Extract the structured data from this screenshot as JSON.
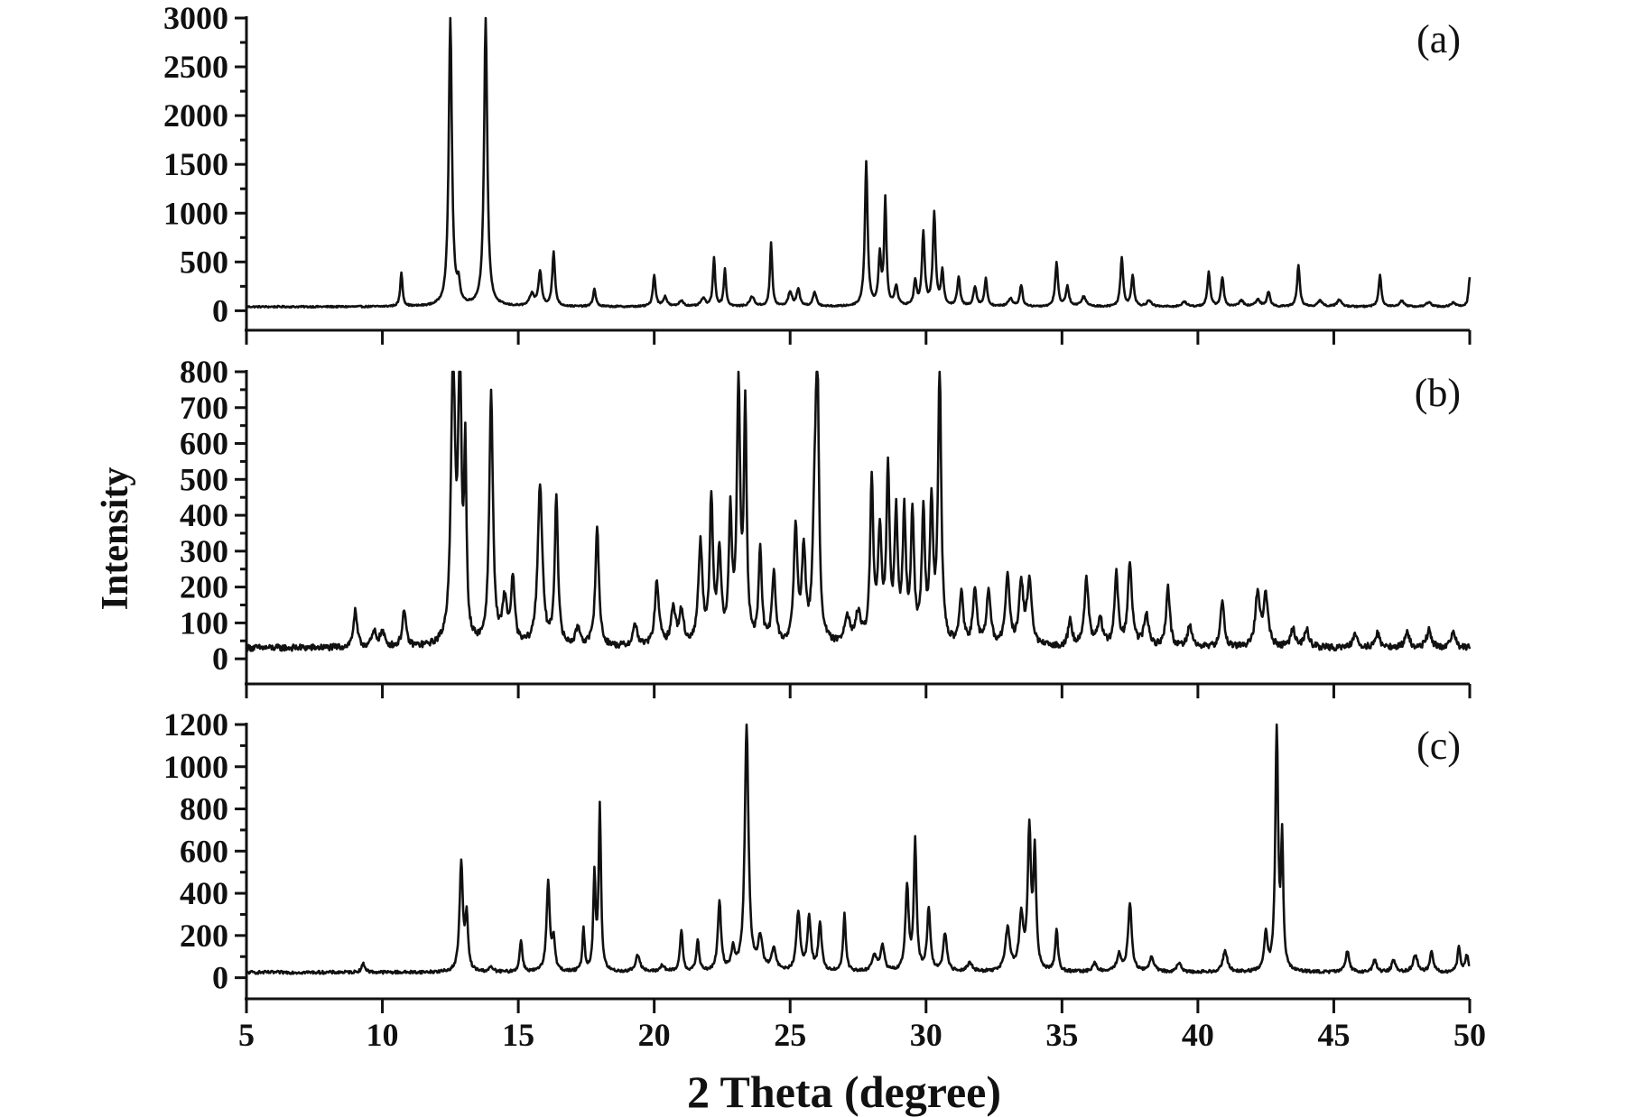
{
  "chart_data": {
    "type": "line",
    "xlabel": "2 Theta (degree)",
    "ylabel": "Intensity",
    "xlim": [
      5,
      50
    ],
    "x_ticks": [
      5,
      10,
      15,
      20,
      25,
      30,
      35,
      40,
      45,
      50
    ],
    "grid": false,
    "line_color": "#111111",
    "panels": [
      {
        "label": "(a)",
        "ylim": [
          -200,
          3000
        ],
        "y_ticks": [
          0,
          500,
          1000,
          1500,
          2000,
          2500,
          3000
        ],
        "baseline": 40,
        "peaks": [
          [
            10.7,
            350,
            0.05
          ],
          [
            12.5,
            2950,
            0.07
          ],
          [
            12.8,
            200,
            0.06
          ],
          [
            13.8,
            2950,
            0.07
          ],
          [
            15.5,
            120,
            0.1
          ],
          [
            15.8,
            350,
            0.07
          ],
          [
            16.3,
            550,
            0.06
          ],
          [
            17.8,
            180,
            0.06
          ],
          [
            20.0,
            320,
            0.06
          ],
          [
            20.4,
            100,
            0.08
          ],
          [
            21.0,
            60,
            0.1
          ],
          [
            21.8,
            80,
            0.1
          ],
          [
            22.2,
            500,
            0.05
          ],
          [
            22.6,
            380,
            0.05
          ],
          [
            23.6,
            100,
            0.1
          ],
          [
            24.3,
            650,
            0.05
          ],
          [
            25.0,
            150,
            0.08
          ],
          [
            25.3,
            180,
            0.07
          ],
          [
            25.9,
            140,
            0.08
          ],
          [
            27.8,
            1480,
            0.06
          ],
          [
            28.3,
            500,
            0.06
          ],
          [
            28.5,
            1080,
            0.05
          ],
          [
            28.9,
            200,
            0.07
          ],
          [
            29.6,
            250,
            0.06
          ],
          [
            29.9,
            750,
            0.06
          ],
          [
            30.3,
            950,
            0.06
          ],
          [
            30.6,
            350,
            0.06
          ],
          [
            31.2,
            300,
            0.06
          ],
          [
            31.8,
            200,
            0.07
          ],
          [
            32.2,
            280,
            0.06
          ],
          [
            33.1,
            80,
            0.1
          ],
          [
            33.5,
            220,
            0.06
          ],
          [
            34.8,
            450,
            0.06
          ],
          [
            35.2,
            200,
            0.07
          ],
          [
            35.8,
            100,
            0.1
          ],
          [
            37.2,
            500,
            0.06
          ],
          [
            37.6,
            320,
            0.06
          ],
          [
            38.2,
            60,
            0.1
          ],
          [
            39.5,
            50,
            0.1
          ],
          [
            40.4,
            350,
            0.06
          ],
          [
            40.9,
            300,
            0.06
          ],
          [
            41.6,
            60,
            0.1
          ],
          [
            42.2,
            70,
            0.1
          ],
          [
            42.6,
            150,
            0.07
          ],
          [
            43.7,
            420,
            0.06
          ],
          [
            44.5,
            60,
            0.1
          ],
          [
            45.2,
            70,
            0.1
          ],
          [
            46.7,
            320,
            0.06
          ],
          [
            47.5,
            60,
            0.1
          ],
          [
            48.5,
            50,
            0.1
          ],
          [
            49.4,
            40,
            0.1
          ],
          [
            50.0,
            300,
            0.05
          ]
        ],
        "noise": 8
      },
      {
        "label": "(b)",
        "ylim": [
          -70,
          800
        ],
        "y_ticks": [
          0,
          100,
          200,
          300,
          400,
          500,
          600,
          700,
          800
        ],
        "baseline": 30,
        "peaks": [
          [
            9.0,
            100,
            0.08
          ],
          [
            9.7,
            40,
            0.1
          ],
          [
            10.0,
            40,
            0.1
          ],
          [
            10.8,
            100,
            0.08
          ],
          [
            12.6,
            780,
            0.09
          ],
          [
            12.85,
            780,
            0.07
          ],
          [
            13.05,
            500,
            0.05
          ],
          [
            14.0,
            700,
            0.08
          ],
          [
            14.5,
            120,
            0.1
          ],
          [
            14.8,
            180,
            0.08
          ],
          [
            15.8,
            450,
            0.1
          ],
          [
            16.4,
            420,
            0.07
          ],
          [
            17.2,
            50,
            0.1
          ],
          [
            17.9,
            330,
            0.08
          ],
          [
            19.3,
            60,
            0.1
          ],
          [
            20.1,
            180,
            0.09
          ],
          [
            20.7,
            100,
            0.1
          ],
          [
            21.0,
            90,
            0.1
          ],
          [
            21.7,
            280,
            0.09
          ],
          [
            22.1,
            400,
            0.07
          ],
          [
            22.4,
            250,
            0.08
          ],
          [
            22.8,
            350,
            0.07
          ],
          [
            23.1,
            720,
            0.07
          ],
          [
            23.35,
            650,
            0.06
          ],
          [
            23.9,
            260,
            0.07
          ],
          [
            24.4,
            200,
            0.08
          ],
          [
            25.2,
            320,
            0.08
          ],
          [
            25.5,
            260,
            0.08
          ],
          [
            25.9,
            300,
            0.08
          ],
          [
            26.0,
            720,
            0.07
          ],
          [
            27.1,
            80,
            0.12
          ],
          [
            27.5,
            80,
            0.12
          ],
          [
            28.0,
            450,
            0.07
          ],
          [
            28.3,
            300,
            0.08
          ],
          [
            28.6,
            470,
            0.07
          ],
          [
            28.9,
            350,
            0.07
          ],
          [
            29.2,
            350,
            0.07
          ],
          [
            29.5,
            360,
            0.07
          ],
          [
            29.9,
            360,
            0.07
          ],
          [
            30.2,
            380,
            0.07
          ],
          [
            30.5,
            760,
            0.07
          ],
          [
            31.3,
            150,
            0.08
          ],
          [
            31.8,
            150,
            0.09
          ],
          [
            32.3,
            150,
            0.09
          ],
          [
            33.0,
            200,
            0.09
          ],
          [
            33.5,
            170,
            0.09
          ],
          [
            33.8,
            180,
            0.1
          ],
          [
            35.3,
            80,
            0.08
          ],
          [
            35.9,
            190,
            0.09
          ],
          [
            36.4,
            80,
            0.1
          ],
          [
            37.0,
            200,
            0.08
          ],
          [
            37.5,
            230,
            0.09
          ],
          [
            38.1,
            90,
            0.1
          ],
          [
            38.9,
            170,
            0.08
          ],
          [
            39.7,
            60,
            0.1
          ],
          [
            40.9,
            130,
            0.08
          ],
          [
            42.2,
            150,
            0.1
          ],
          [
            42.5,
            140,
            0.1
          ],
          [
            43.5,
            50,
            0.1
          ],
          [
            44.0,
            50,
            0.1
          ],
          [
            45.8,
            40,
            0.1
          ],
          [
            46.6,
            40,
            0.1
          ],
          [
            47.7,
            40,
            0.1
          ],
          [
            48.5,
            50,
            0.1
          ],
          [
            49.4,
            40,
            0.1
          ]
        ],
        "noise": 9
      },
      {
        "label": "(c)",
        "ylim": [
          -100,
          1200
        ],
        "y_ticks": [
          0,
          200,
          400,
          600,
          800,
          1000,
          1200
        ],
        "baseline": 25,
        "peaks": [
          [
            9.3,
            40,
            0.08
          ],
          [
            12.9,
            520,
            0.07
          ],
          [
            13.1,
            250,
            0.06
          ],
          [
            14.0,
            20,
            0.1
          ],
          [
            15.1,
            150,
            0.06
          ],
          [
            16.1,
            420,
            0.07
          ],
          [
            16.3,
            150,
            0.06
          ],
          [
            17.4,
            200,
            0.05
          ],
          [
            17.8,
            450,
            0.05
          ],
          [
            18.0,
            780,
            0.05
          ],
          [
            19.4,
            80,
            0.1
          ],
          [
            20.3,
            30,
            0.1
          ],
          [
            21.0,
            200,
            0.06
          ],
          [
            21.6,
            150,
            0.06
          ],
          [
            22.4,
            330,
            0.07
          ],
          [
            22.9,
            100,
            0.08
          ],
          [
            23.4,
            1170,
            0.08
          ],
          [
            23.9,
            150,
            0.1
          ],
          [
            24.4,
            100,
            0.1
          ],
          [
            25.3,
            280,
            0.08
          ],
          [
            25.7,
            250,
            0.08
          ],
          [
            26.1,
            230,
            0.07
          ],
          [
            27.0,
            270,
            0.06
          ],
          [
            28.1,
            80,
            0.1
          ],
          [
            28.4,
            120,
            0.08
          ],
          [
            29.3,
            400,
            0.07
          ],
          [
            29.6,
            610,
            0.06
          ],
          [
            30.1,
            300,
            0.07
          ],
          [
            30.7,
            180,
            0.08
          ],
          [
            31.6,
            40,
            0.12
          ],
          [
            33.0,
            200,
            0.1
          ],
          [
            33.5,
            250,
            0.09
          ],
          [
            33.8,
            650,
            0.07
          ],
          [
            34.0,
            550,
            0.06
          ],
          [
            34.8,
            200,
            0.06
          ],
          [
            36.2,
            40,
            0.1
          ],
          [
            37.1,
            80,
            0.1
          ],
          [
            37.5,
            320,
            0.08
          ],
          [
            38.3,
            70,
            0.1
          ],
          [
            39.3,
            40,
            0.1
          ],
          [
            41.0,
            100,
            0.1
          ],
          [
            42.5,
            180,
            0.07
          ],
          [
            42.9,
            1170,
            0.06
          ],
          [
            43.1,
            600,
            0.05
          ],
          [
            45.5,
            100,
            0.08
          ],
          [
            46.5,
            60,
            0.08
          ],
          [
            47.2,
            60,
            0.08
          ],
          [
            48.0,
            80,
            0.1
          ],
          [
            48.6,
            100,
            0.07
          ],
          [
            49.6,
            120,
            0.06
          ],
          [
            49.9,
            80,
            0.07
          ]
        ],
        "noise": 7
      }
    ]
  }
}
